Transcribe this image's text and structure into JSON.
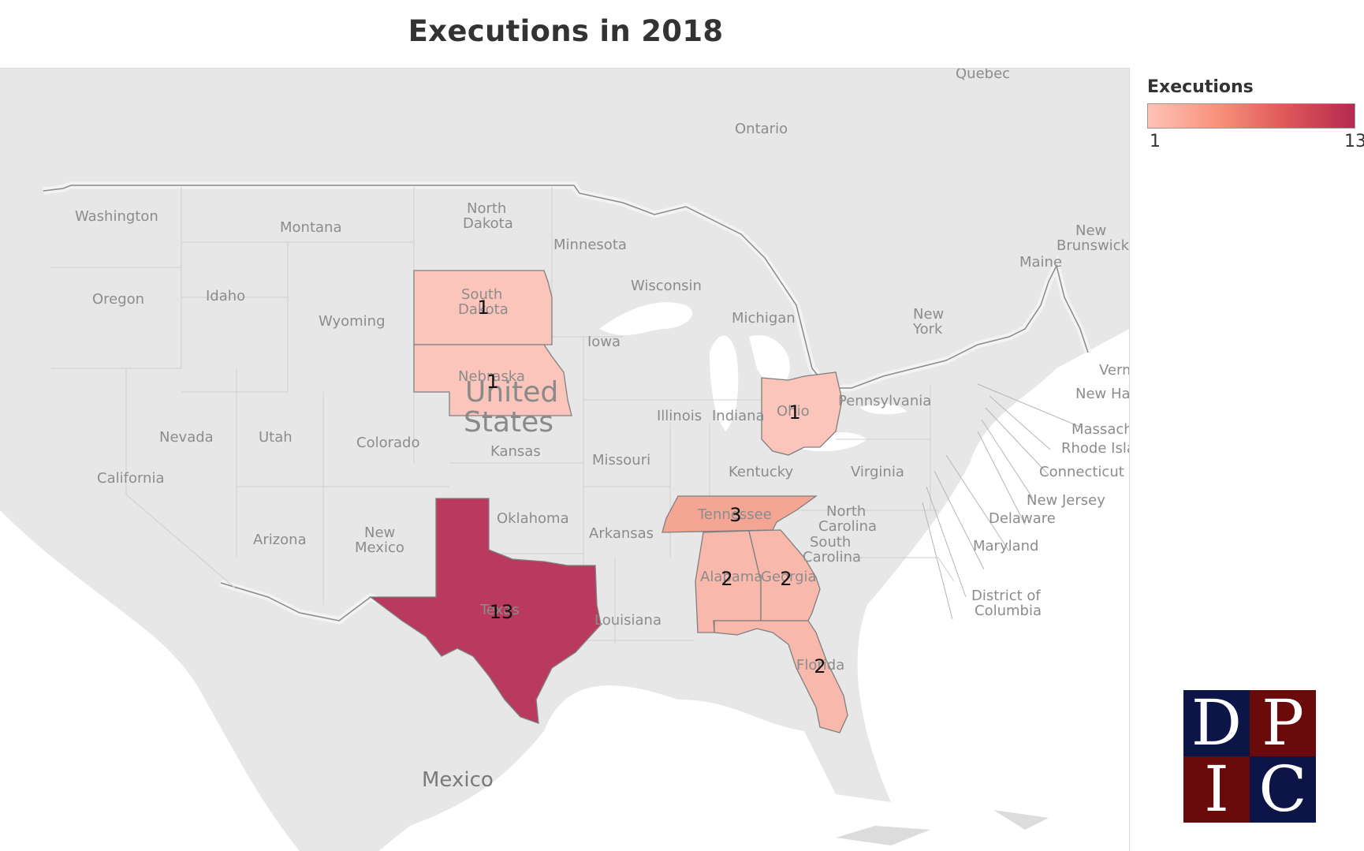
{
  "title": "Executions in 2018",
  "legend": {
    "title": "Executions",
    "min_label": "1",
    "max_label": "13",
    "color_low": "#ffc2b6",
    "color_high": "#b5294f"
  },
  "map": {
    "country_labels": [
      "United",
      "States",
      "Mexico"
    ],
    "place_labels": {
      "quebec": "Quebec",
      "ontario": "Ontario",
      "washington": "Washington",
      "montana": "Montana",
      "north_dakota_1": "North",
      "north_dakota_2": "Dakota",
      "minnesota": "Minnesota",
      "oregon": "Oregon",
      "idaho": "Idaho",
      "wyoming": "Wyoming",
      "south_dakota_1": "South",
      "south_dakota_2": "Dakota",
      "wisconsin": "Wisconsin",
      "michigan": "Michigan",
      "new_york_1": "New",
      "new_york_2": "York",
      "new_brunswick_1": "New",
      "new_brunswick_2": "Brunswick",
      "maine": "Maine",
      "iowa": "Iowa",
      "nebraska": "Nebraska",
      "nevada": "Nevada",
      "utah": "Utah",
      "colorado": "Colorado",
      "kansas": "Kansas",
      "illinois": "Illinois",
      "indiana": "Indiana",
      "ohio": "Ohio",
      "pennsylvania": "Pennsylvania",
      "vermont": "Verm",
      "new_hampshire": "New Ha",
      "massachusetts": "Massach",
      "rhode_island": "Rhode Isla",
      "connecticut": "Connecticut",
      "new_jersey": "New Jersey",
      "delaware": "Delaware",
      "maryland": "Maryland",
      "dc_1": "District of",
      "dc_2": "Columbia",
      "california": "California",
      "missouri": "Missouri",
      "kentucky": "Kentucky",
      "virginia": "Virginia",
      "tennessee": "Tennessee",
      "north_carolina_1": "North",
      "north_carolina_2": "Carolina",
      "south_carolina_1": "South",
      "south_carolina_2": "Carolina",
      "arizona": "Arizona",
      "new_mexico_1": "New",
      "new_mexico_2": "Mexico",
      "oklahoma": "Oklahoma",
      "arkansas": "Arkansas",
      "alabama": "Alabama",
      "georgia": "Georgia",
      "texas": "Texas",
      "louisiana": "Louisiana",
      "florida": "Florida"
    },
    "states": [
      {
        "name": "South Dakota",
        "executions": "1",
        "color": "#fbc5bc"
      },
      {
        "name": "Nebraska",
        "executions": "1",
        "color": "#fbc5bc"
      },
      {
        "name": "Ohio",
        "executions": "1",
        "color": "#fbc5bc"
      },
      {
        "name": "Tennessee",
        "executions": "3",
        "color": "#f5a594"
      },
      {
        "name": "Alabama",
        "executions": "2",
        "color": "#f8b8ab"
      },
      {
        "name": "Georgia",
        "executions": "2",
        "color": "#f8b8ab"
      },
      {
        "name": "Florida",
        "executions": "2",
        "color": "#f8b8ab"
      },
      {
        "name": "Texas",
        "executions": "13",
        "color": "#b93a5e"
      }
    ]
  },
  "logo": {
    "letters": [
      "D",
      "P",
      "I",
      "C"
    ]
  }
}
